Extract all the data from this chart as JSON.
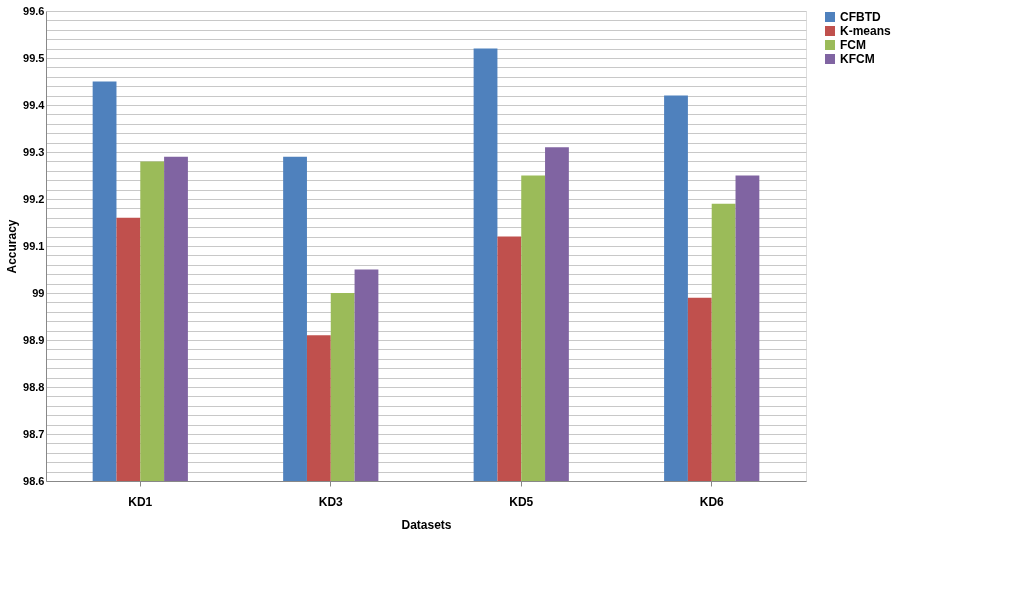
{
  "chart_data": {
    "type": "bar",
    "xlabel": "Datasets",
    "ylabel": "Accuracy",
    "categories": [
      "KD1",
      "KD3",
      "KD5",
      "KD6"
    ],
    "series": [
      {
        "name": "CFBTD",
        "color": "#4f81bd",
        "values": [
          99.45,
          99.29,
          99.52,
          99.42
        ]
      },
      {
        "name": "K-means",
        "color": "#c0504d",
        "values": [
          99.16,
          98.91,
          99.12,
          98.99
        ]
      },
      {
        "name": "FCM",
        "color": "#9bbb59",
        "values": [
          99.28,
          99.0,
          99.25,
          99.19
        ]
      },
      {
        "name": "KFCM",
        "color": "#8064a2",
        "values": [
          99.29,
          99.05,
          99.31,
          99.25
        ]
      }
    ],
    "ylim": [
      98.6,
      99.6
    ],
    "yticks": [
      98.6,
      {
        "value": 98.62,
        "label": null
      },
      {
        "value": 98.64,
        "label": null
      },
      {
        "value": 98.66,
        "label": null
      },
      {
        "value": 98.68,
        "label": null
      },
      98.7,
      {
        "value": 98.72,
        "label": null
      },
      {
        "value": 98.74,
        "label": null
      },
      {
        "value": 98.76,
        "label": null
      },
      {
        "value": 98.78,
        "label": null
      },
      98.8,
      {
        "value": 98.82,
        "label": null
      },
      {
        "value": 98.84,
        "label": null
      },
      {
        "value": 98.86,
        "label": null
      },
      {
        "value": 98.88,
        "label": null
      },
      98.9,
      {
        "value": 98.92,
        "label": null
      },
      {
        "value": 98.94,
        "label": null
      },
      {
        "value": 98.96,
        "label": null
      },
      {
        "value": 98.98,
        "label": null
      },
      {
        "value": 99.0,
        "label": "99"
      },
      {
        "value": 99.02,
        "label": null
      },
      {
        "value": 99.04,
        "label": null
      },
      {
        "value": 99.06,
        "label": null
      },
      {
        "value": 99.08,
        "label": null
      },
      99.1,
      {
        "value": 99.12,
        "label": null
      },
      {
        "value": 99.14,
        "label": null
      },
      {
        "value": 99.16,
        "label": null
      },
      {
        "value": 99.18,
        "label": null
      },
      99.2,
      {
        "value": 99.22,
        "label": null
      },
      {
        "value": 99.24,
        "label": null
      },
      {
        "value": 99.26,
        "label": null
      },
      {
        "value": 99.28,
        "label": null
      },
      99.3,
      {
        "value": 99.32,
        "label": null
      },
      {
        "value": 99.34,
        "label": null
      },
      {
        "value": 99.36,
        "label": null
      },
      {
        "value": 99.38,
        "label": null
      },
      99.4,
      {
        "value": 99.42,
        "label": null
      },
      {
        "value": 99.44,
        "label": null
      },
      {
        "value": 99.46,
        "label": null
      },
      {
        "value": 99.48,
        "label": null
      },
      99.5,
      {
        "value": 99.52,
        "label": null
      },
      {
        "value": 99.54,
        "label": null
      },
      {
        "value": 99.56,
        "label": null
      },
      {
        "value": 99.58,
        "label": null
      },
      99.6
    ],
    "grid": "y",
    "legend": "right"
  }
}
